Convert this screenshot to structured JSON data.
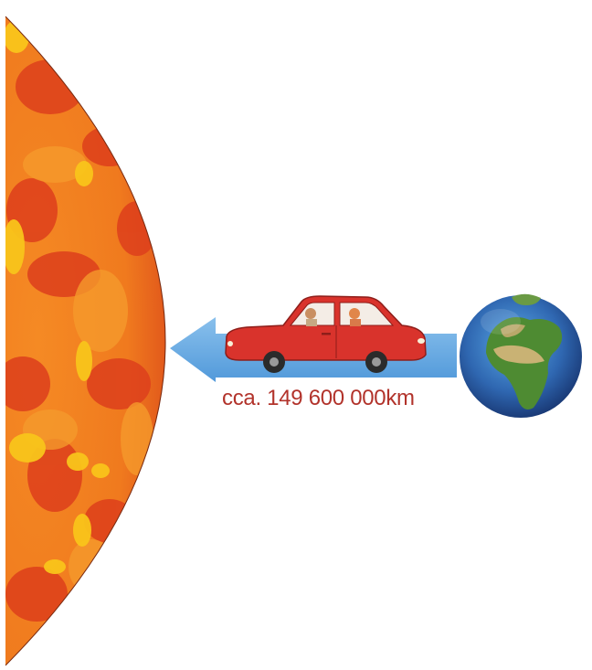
{
  "diagram": {
    "distance_label": "cca. 149 600 000km",
    "objects": [
      {
        "name": "sun",
        "icon": "sun-icon"
      },
      {
        "name": "car",
        "icon": "car-icon"
      },
      {
        "name": "earth",
        "icon": "earth-icon"
      },
      {
        "name": "direction-arrow",
        "icon": "arrow-left-icon"
      }
    ]
  },
  "colors": {
    "sun_base": "#F07A1E",
    "sun_dark": "#DD3F1C",
    "sun_light": "#F9C51B",
    "arrow": "#5AA6E0",
    "car_body": "#D9332C",
    "earth_ocean": "#2F67B1",
    "earth_land": "#4E8B32",
    "label_text": "#B2332B"
  }
}
